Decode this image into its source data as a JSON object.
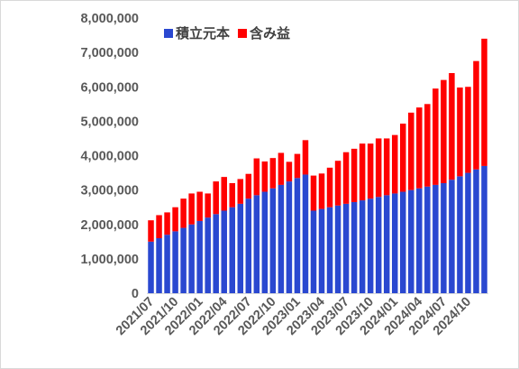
{
  "chart_data": {
    "type": "bar",
    "stacked": true,
    "title": "",
    "xlabel": "",
    "ylabel": "",
    "ylim": [
      0,
      8000000
    ],
    "yticks": [
      0,
      1000000,
      2000000,
      3000000,
      4000000,
      5000000,
      6000000,
      7000000,
      8000000
    ],
    "ytick_labels": [
      "0",
      "1,000,000",
      "2,000,000",
      "3,000,000",
      "4,000,000",
      "5,000,000",
      "6,000,000",
      "7,000,000",
      "8,000,000"
    ],
    "grid": false,
    "legend": "top-left",
    "colors": {
      "principal": "#2a48d0",
      "gain": "#ff0000"
    },
    "categories": [
      "2021/07",
      "2021/08",
      "2021/09",
      "2021/10",
      "2021/11",
      "2021/12",
      "2022/01",
      "2022/02",
      "2022/03",
      "2022/04",
      "2022/05",
      "2022/06",
      "2022/07",
      "2022/08",
      "2022/09",
      "2022/10",
      "2022/11",
      "2022/12",
      "2023/01",
      "2023/02",
      "2023/03",
      "2023/04",
      "2023/05",
      "2023/06",
      "2023/07",
      "2023/08",
      "2023/09",
      "2023/10",
      "2023/11",
      "2023/12",
      "2024/01",
      "2024/02",
      "2024/03",
      "2024/04",
      "2024/05",
      "2024/06",
      "2024/07",
      "2024/08",
      "2024/09",
      "2024/10",
      "2024/11",
      "2024/12"
    ],
    "xtick_labels": [
      "2021/07",
      "2021/10",
      "2022/01",
      "2022/04",
      "2022/07",
      "2022/10",
      "2023/01",
      "2023/04",
      "2023/07",
      "2023/10",
      "2024/01",
      "2024/04",
      "2024/07",
      "2024/10"
    ],
    "xtick_indices": [
      0,
      3,
      6,
      9,
      12,
      15,
      18,
      21,
      24,
      27,
      30,
      33,
      36,
      39
    ],
    "series": [
      {
        "name": "積立元本",
        "values": [
          1500000,
          1600000,
          1700000,
          1800000,
          1900000,
          2000000,
          2100000,
          2200000,
          2300000,
          2400000,
          2500000,
          2600000,
          2750000,
          2850000,
          2950000,
          3050000,
          3150000,
          3250000,
          3350000,
          3450000,
          2400000,
          2450000,
          2500000,
          2550000,
          2600000,
          2650000,
          2700000,
          2750000,
          2800000,
          2850000,
          2900000,
          2950000,
          3000000,
          3050000,
          3100000,
          3150000,
          3200000,
          3300000,
          3400000,
          3500000,
          3600000,
          3700000
        ]
      },
      {
        "name": "含み益",
        "values": [
          620000,
          670000,
          650000,
          700000,
          850000,
          900000,
          850000,
          700000,
          950000,
          980000,
          700000,
          720000,
          720000,
          1070000,
          880000,
          880000,
          930000,
          570000,
          700000,
          1000000,
          1020000,
          1030000,
          1150000,
          1300000,
          1500000,
          1550000,
          1650000,
          1600000,
          1700000,
          1650000,
          1700000,
          1980000,
          2250000,
          2350000,
          2400000,
          2800000,
          3000000,
          3100000,
          2580000,
          2500000,
          3150000,
          3700000
        ]
      }
    ]
  }
}
